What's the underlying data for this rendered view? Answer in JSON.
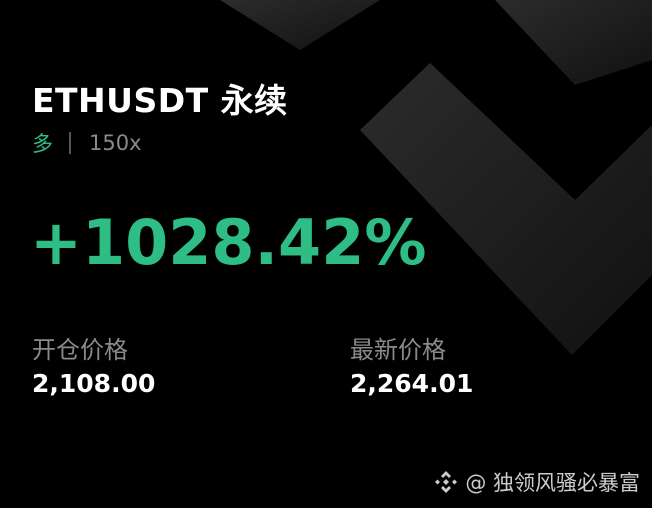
{
  "header": {
    "title": "ETHUSDT 永续",
    "side": "多",
    "leverage": "150x"
  },
  "pnl": {
    "value": "+1028.42%"
  },
  "stats": [
    {
      "label": "开仓价格",
      "value": "2,108.00"
    },
    {
      "label": "最新价格",
      "value": "2,264.01"
    }
  ],
  "footer": {
    "text": "@ 独领风骚必暴富",
    "icon": "binance-logo-icon"
  },
  "colors": {
    "accent": "#2ebd85",
    "background": "#000000"
  }
}
